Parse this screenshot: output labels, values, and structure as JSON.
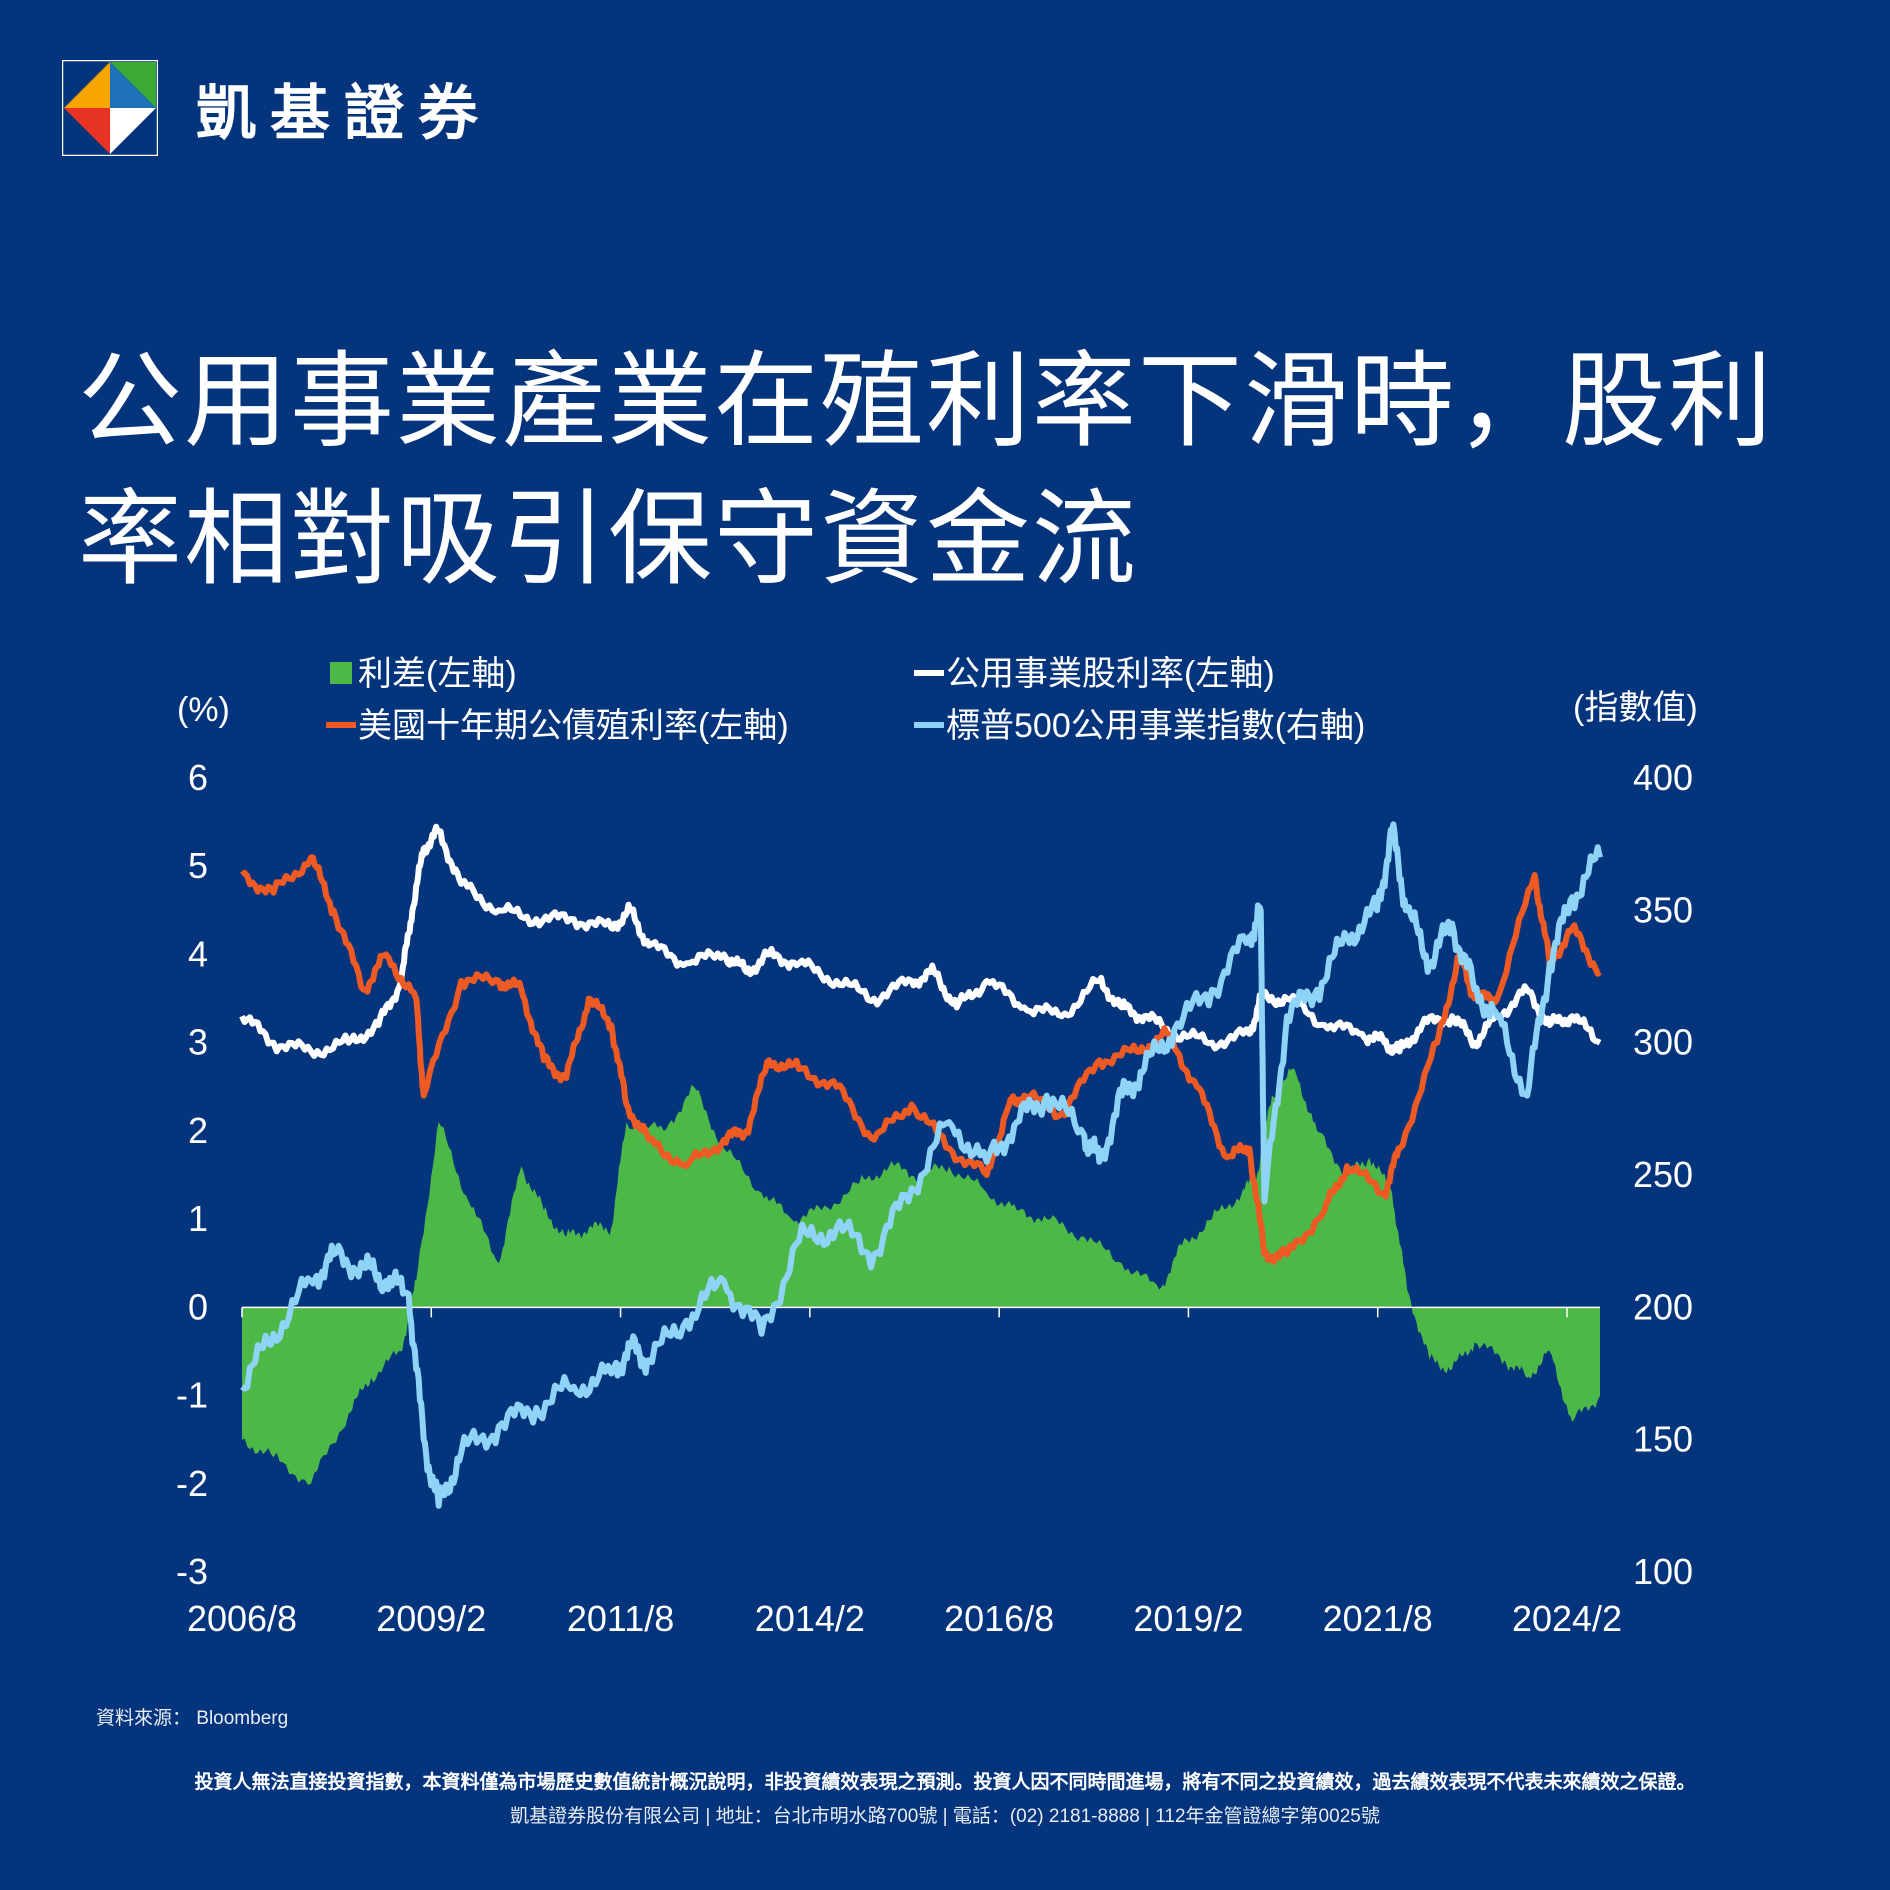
{
  "brand": {
    "name": "凱基證券",
    "logo_colors": [
      "#e63323",
      "#f7a600",
      "#3aaa35",
      "#1d71b8",
      "#ffffff"
    ]
  },
  "headline": {
    "line1": "公用事業產業在殖利率下滑時，股利",
    "line2": "率相對吸引保守資金流"
  },
  "colors": {
    "background": "#04347c",
    "spread": "#4cb848",
    "utility_yield": "#ffffff",
    "treasury": "#ee5a24",
    "index": "#8fd3f7"
  },
  "chart_data": {
    "type": "line",
    "ylabel": "(%)",
    "y2label": "(指數值)",
    "ylim": [
      -3,
      6
    ],
    "y2lim": [
      100,
      400
    ],
    "yticks": [
      "6",
      "5",
      "4",
      "3",
      "2",
      "1",
      "0",
      "-1",
      "-2",
      "-3"
    ],
    "y2ticks": [
      "400",
      "350",
      "300",
      "250",
      "200",
      "150",
      "100"
    ],
    "xlim": [
      2006.58,
      2024.67
    ],
    "xticks": [
      "2006/8",
      "2009/2",
      "2011/8",
      "2014/2",
      "2016/8",
      "2019/2",
      "2021/8",
      "2024/2"
    ],
    "legend": [
      "利差(左軸)",
      "公用事業股利率(左軸)",
      "美國十年期公債殖利率(左軸)",
      "標普500公用事業指數(右軸)"
    ],
    "series": [
      {
        "name": "利差(左軸)",
        "kind": "area",
        "axis": "left",
        "x": [
          2006.58,
          2007.0,
          2007.5,
          2008.0,
          2008.3,
          2008.7,
          2008.9,
          2009.2,
          2009.6,
          2010.0,
          2010.3,
          2010.6,
          2010.9,
          2011.2,
          2011.5,
          2011.7,
          2012.2,
          2012.6,
          2013.0,
          2013.5,
          2013.9,
          2014.3,
          2014.8,
          2015.2,
          2015.6,
          2016.0,
          2016.5,
          2016.9,
          2017.3,
          2017.8,
          2018.3,
          2018.8,
          2019.1,
          2019.5,
          2019.9,
          2020.1,
          2020.3,
          2020.6,
          2020.9,
          2021.3,
          2021.6,
          2021.9,
          2022.1,
          2022.4,
          2022.7,
          2023.0,
          2023.4,
          2023.7,
          2024.0,
          2024.3,
          2024.67
        ],
        "values": [
          -1.5,
          -1.7,
          -2.0,
          -1.2,
          -0.8,
          -0.5,
          0.3,
          2.1,
          1.2,
          0.5,
          1.6,
          1.1,
          0.8,
          0.9,
          0.9,
          2.1,
          2.0,
          2.5,
          1.8,
          1.3,
          1.0,
          1.1,
          1.4,
          1.6,
          1.5,
          1.6,
          1.3,
          1.1,
          1.0,
          0.8,
          0.5,
          0.2,
          0.7,
          1.0,
          1.3,
          1.5,
          2.4,
          2.7,
          2.0,
          1.5,
          1.7,
          1.3,
          0.2,
          -0.6,
          -0.7,
          -0.4,
          -0.6,
          -0.8,
          -0.5,
          -1.3,
          -1.0
        ]
      },
      {
        "name": "公用事業股利率(左軸)",
        "kind": "line",
        "axis": "left",
        "x": [
          2006.58,
          2007.0,
          2007.5,
          2008.0,
          2008.4,
          2008.7,
          2008.85,
          2009.0,
          2009.2,
          2009.5,
          2010.0,
          2010.5,
          2011.0,
          2011.5,
          2011.75,
          2012.0,
          2012.5,
          2013.0,
          2013.3,
          2013.6,
          2014.0,
          2014.5,
          2015.0,
          2015.5,
          2015.8,
          2016.1,
          2016.5,
          2017.0,
          2017.5,
          2018.0,
          2018.3,
          2018.6,
          2019.0,
          2019.5,
          2020.0,
          2020.15,
          2020.5,
          2021.0,
          2021.5,
          2021.8,
          2022.0,
          2022.3,
          2022.7,
          2023.0,
          2023.3,
          2023.7,
          2024.0,
          2024.3,
          2024.67
        ],
        "values": [
          3.3,
          3.0,
          2.9,
          3.0,
          3.2,
          3.7,
          4.5,
          5.2,
          5.4,
          4.8,
          4.5,
          4.4,
          4.4,
          4.3,
          4.5,
          4.1,
          3.9,
          4.0,
          3.8,
          4.0,
          3.9,
          3.7,
          3.5,
          3.7,
          3.8,
          3.4,
          3.7,
          3.4,
          3.3,
          3.7,
          3.4,
          3.3,
          3.1,
          3.0,
          3.1,
          3.5,
          3.5,
          3.2,
          3.1,
          3.0,
          2.9,
          3.2,
          3.3,
          3.0,
          3.3,
          3.6,
          3.2,
          3.3,
          3.0
        ]
      },
      {
        "name": "美國十年期公債殖利率(左軸)",
        "kind": "line",
        "axis": "left",
        "x": [
          2006.58,
          2007.0,
          2007.5,
          2007.8,
          2008.2,
          2008.5,
          2008.9,
          2009.0,
          2009.5,
          2010.0,
          2010.3,
          2010.6,
          2010.9,
          2011.2,
          2011.5,
          2011.7,
          2012.0,
          2012.5,
          2013.0,
          2013.3,
          2013.6,
          2014.0,
          2014.5,
          2015.0,
          2015.5,
          2016.0,
          2016.5,
          2016.8,
          2017.0,
          2017.5,
          2018.0,
          2018.5,
          2018.9,
          2019.3,
          2019.7,
          2020.0,
          2020.2,
          2020.5,
          2021.0,
          2021.3,
          2021.8,
          2022.0,
          2022.5,
          2022.8,
          2023.0,
          2023.3,
          2023.8,
          2024.0,
          2024.3,
          2024.67
        ],
        "values": [
          4.9,
          4.7,
          5.1,
          4.5,
          3.6,
          4.0,
          3.5,
          2.4,
          3.7,
          3.7,
          3.6,
          2.8,
          2.6,
          3.5,
          3.2,
          2.3,
          1.9,
          1.6,
          1.9,
          2.0,
          2.8,
          2.7,
          2.5,
          1.9,
          2.3,
          1.8,
          1.5,
          2.3,
          2.4,
          2.2,
          2.8,
          2.9,
          3.1,
          2.5,
          1.7,
          1.8,
          0.6,
          0.6,
          1.1,
          1.6,
          1.3,
          1.8,
          3.0,
          4.0,
          3.5,
          3.5,
          4.9,
          3.9,
          4.3,
          3.8
        ]
      },
      {
        "name": "標普500公用事業指數(右軸)",
        "kind": "line",
        "axis": "right",
        "x": [
          2006.58,
          2007.0,
          2007.5,
          2007.8,
          2008.2,
          2008.5,
          2008.8,
          2009.0,
          2009.2,
          2009.5,
          2010.0,
          2010.5,
          2011.0,
          2011.5,
          2011.75,
          2012.0,
          2012.5,
          2013.0,
          2013.5,
          2014.0,
          2014.5,
          2015.0,
          2015.5,
          2016.0,
          2016.5,
          2016.9,
          2017.3,
          2017.8,
          2018.0,
          2018.3,
          2018.6,
          2019.0,
          2019.5,
          2020.0,
          2020.15,
          2020.2,
          2020.5,
          2020.9,
          2021.3,
          2021.7,
          2021.9,
          2022.1,
          2022.4,
          2022.7,
          2023.0,
          2023.3,
          2023.7,
          2024.0,
          2024.3,
          2024.67
        ],
        "values": [
          170,
          190,
          210,
          220,
          215,
          210,
          205,
          150,
          125,
          145,
          155,
          162,
          170,
          175,
          185,
          180,
          195,
          210,
          190,
          225,
          230,
          220,
          245,
          270,
          255,
          270,
          280,
          265,
          255,
          280,
          290,
          305,
          320,
          340,
          350,
          240,
          310,
          320,
          340,
          350,
          380,
          350,
          330,
          345,
          320,
          310,
          280,
          330,
          355,
          370
        ]
      }
    ]
  },
  "footer": {
    "source": "資料來源： Bloomberg",
    "disclaimer": "投資人無法直接投資指數，本資料僅為市場歷史數值統計概況說明，非投資績效表現之預測。投資人因不同時間進場，將有不同之投資績效，過去績效表現不代表未來績效之保證。",
    "company": "凱基證券股份有限公司 | 地址：台北市明水路700號 | 電話：(02) 2181-8888 | 112年金管證總字第0025號"
  }
}
